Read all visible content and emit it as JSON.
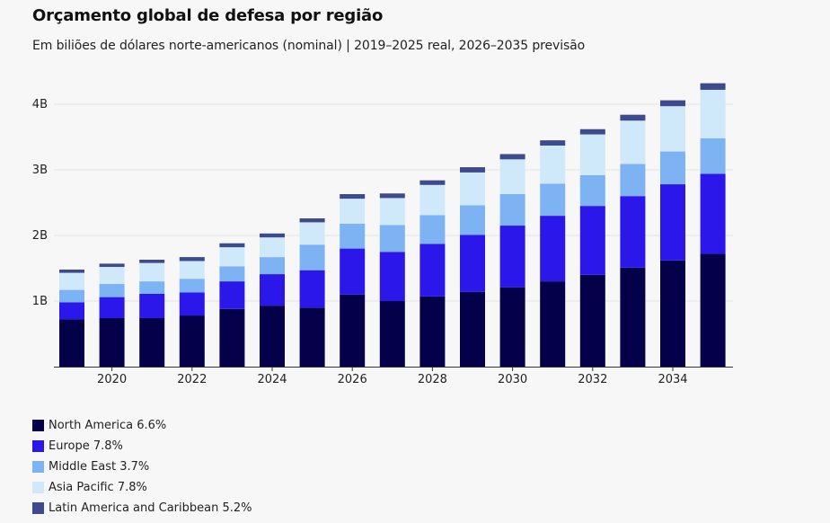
{
  "title": "Orçamento global de defesa por região",
  "subtitle": "Em biliões de dólares norte-americanos (nominal) | 2019–2025 real, 2026–2035 previsão",
  "chart_data": {
    "type": "bar",
    "stacked": true,
    "categories": [
      "2019",
      "2020",
      "2021",
      "2022",
      "2023",
      "2024",
      "2025",
      "2026",
      "2027",
      "2028",
      "2029",
      "2030",
      "2031",
      "2032",
      "2033",
      "2034",
      "2035"
    ],
    "x_tick_labels": [
      "2020",
      "2022",
      "2024",
      "2026",
      "2028",
      "2030",
      "2032",
      "2034"
    ],
    "y_ticks": [
      {
        "value": 1,
        "label": "1B"
      },
      {
        "value": 2,
        "label": "2B"
      },
      {
        "value": 3,
        "label": "3B"
      },
      {
        "value": 4,
        "label": "4B"
      }
    ],
    "ylim": [
      0,
      4.3
    ],
    "grid": true,
    "legend_position": "bottom-left",
    "series": [
      {
        "name": "North America 6.6%",
        "color": "#05004a",
        "values": [
          0.72,
          0.74,
          0.74,
          0.78,
          0.88,
          0.93,
          0.9,
          1.1,
          1.0,
          1.07,
          1.14,
          1.21,
          1.3,
          1.4,
          1.51,
          1.62,
          1.72
        ]
      },
      {
        "name": "Europe 7.8%",
        "color": "#2b17ea",
        "values": [
          0.26,
          0.32,
          0.37,
          0.35,
          0.42,
          0.48,
          0.57,
          0.7,
          0.75,
          0.8,
          0.87,
          0.94,
          1.0,
          1.05,
          1.09,
          1.16,
          1.22
        ]
      },
      {
        "name": "Middle East 3.7%",
        "color": "#7db2f3",
        "values": [
          0.19,
          0.2,
          0.19,
          0.21,
          0.23,
          0.26,
          0.39,
          0.38,
          0.41,
          0.44,
          0.45,
          0.48,
          0.49,
          0.47,
          0.49,
          0.5,
          0.54
        ]
      },
      {
        "name": "Asia Pacific 7.8%",
        "color": "#cfe9fb",
        "values": [
          0.26,
          0.26,
          0.28,
          0.27,
          0.29,
          0.3,
          0.34,
          0.38,
          0.41,
          0.46,
          0.5,
          0.53,
          0.58,
          0.62,
          0.66,
          0.69,
          0.74
        ]
      },
      {
        "name": "Latin America and Caribbean 5.2%",
        "color": "#3d4a8c",
        "values": [
          0.05,
          0.05,
          0.05,
          0.06,
          0.06,
          0.06,
          0.06,
          0.07,
          0.07,
          0.07,
          0.08,
          0.08,
          0.08,
          0.08,
          0.09,
          0.09,
          0.1
        ]
      }
    ]
  }
}
